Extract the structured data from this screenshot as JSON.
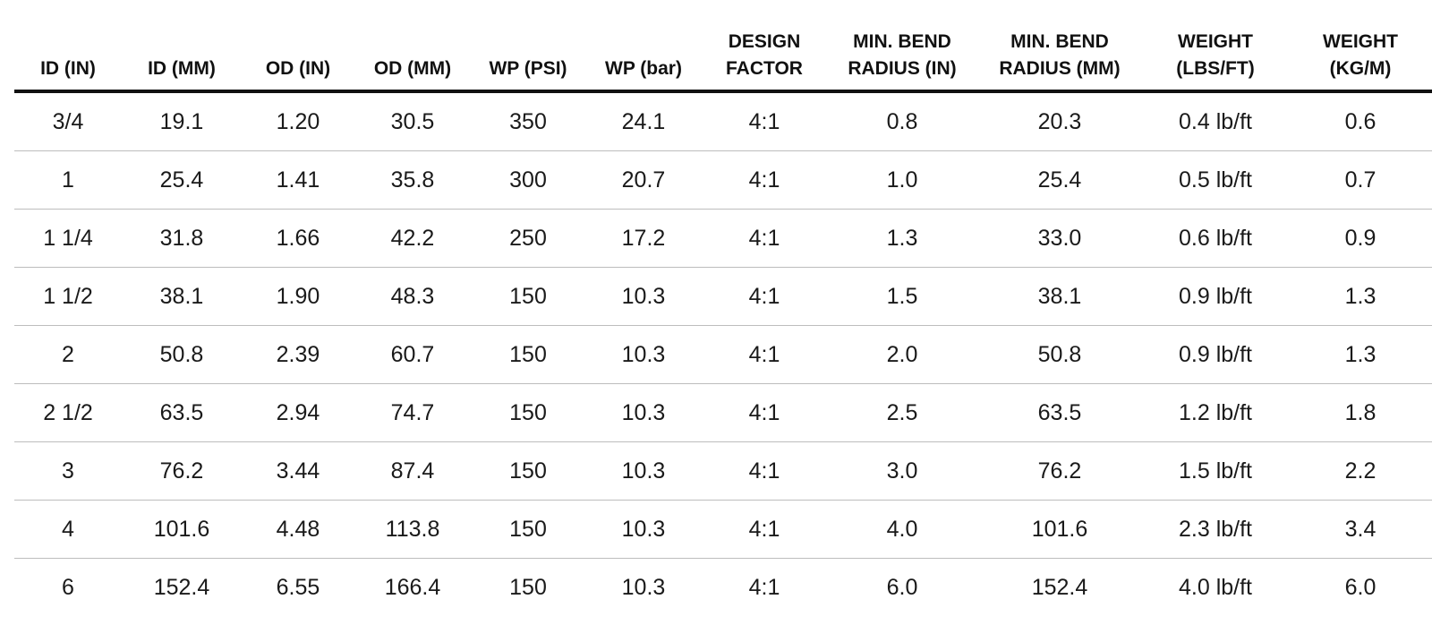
{
  "table": {
    "headers": [
      [
        "ID (IN)"
      ],
      [
        "ID (MM)"
      ],
      [
        "OD (IN)"
      ],
      [
        "OD (MM)"
      ],
      [
        "WP (PSI)"
      ],
      [
        "WP (bar)"
      ],
      [
        "DESIGN",
        "FACTOR"
      ],
      [
        "MIN. BEND",
        "RADIUS (IN)"
      ],
      [
        "MIN. BEND",
        "RADIUS (MM)"
      ],
      [
        "WEIGHT",
        "(LBS/FT)"
      ],
      [
        "WEIGHT",
        "(KG/M)"
      ]
    ],
    "rows": [
      [
        "3/4",
        "19.1",
        "1.20",
        "30.5",
        "350",
        "24.1",
        "4:1",
        "0.8",
        "20.3",
        "0.4 lb/ft",
        "0.6"
      ],
      [
        "1",
        "25.4",
        "1.41",
        "35.8",
        "300",
        "20.7",
        "4:1",
        "1.0",
        "25.4",
        "0.5 lb/ft",
        "0.7"
      ],
      [
        "1 1/4",
        "31.8",
        "1.66",
        "42.2",
        "250",
        "17.2",
        "4:1",
        "1.3",
        "33.0",
        "0.6 lb/ft",
        "0.9"
      ],
      [
        "1 1/2",
        "38.1",
        "1.90",
        "48.3",
        "150",
        "10.3",
        "4:1",
        "1.5",
        "38.1",
        "0.9 lb/ft",
        "1.3"
      ],
      [
        "2",
        "50.8",
        "2.39",
        "60.7",
        "150",
        "10.3",
        "4:1",
        "2.0",
        "50.8",
        "0.9 lb/ft",
        "1.3"
      ],
      [
        "2 1/2",
        "63.5",
        "2.94",
        "74.7",
        "150",
        "10.3",
        "4:1",
        "2.5",
        "63.5",
        "1.2 lb/ft",
        "1.8"
      ],
      [
        "3",
        "76.2",
        "3.44",
        "87.4",
        "150",
        "10.3",
        "4:1",
        "3.0",
        "76.2",
        "1.5 lb/ft",
        "2.2"
      ],
      [
        "4",
        "101.6",
        "4.48",
        "113.8",
        "150",
        "10.3",
        "4:1",
        "4.0",
        "101.6",
        "2.3 lb/ft",
        "3.4"
      ],
      [
        "6",
        "152.4",
        "6.55",
        "166.4",
        "150",
        "10.3",
        "4:1",
        "6.0",
        "152.4",
        "4.0 lb/ft",
        "6.0"
      ]
    ]
  }
}
